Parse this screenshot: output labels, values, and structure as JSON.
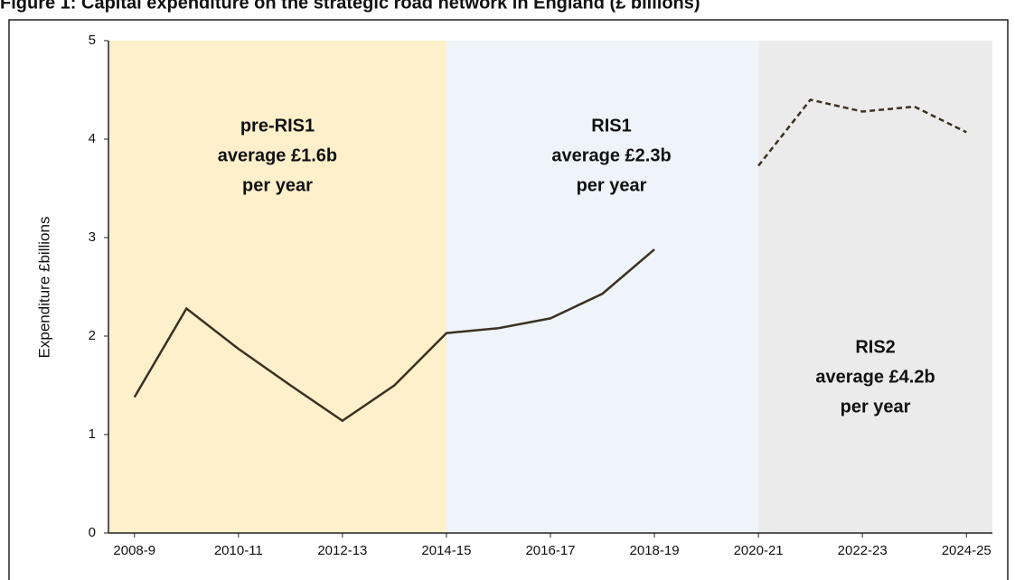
{
  "chart_data": {
    "type": "line",
    "title": "Figure 1: Capital expenditure on the strategic road network in England (£ billions)",
    "y_label": "Expenditure £billions",
    "categories": [
      "2008-9",
      null,
      "2010-11",
      null,
      "2012-13",
      null,
      "2014-15",
      null,
      "2016-17",
      null,
      "2018-19",
      null,
      "2020-21",
      null,
      "2022-23",
      null,
      "2024-25"
    ],
    "series": [
      {
        "color": "#3b3120",
        "style": "solid",
        "values": [
          1.38,
          2.28,
          1.87,
          1.5,
          1.14,
          1.5,
          2.03,
          2.08,
          2.18,
          2.43,
          2.88,
          null,
          null,
          null,
          null,
          null,
          null
        ]
      },
      {
        "color": "#3b3120",
        "style": "dashed",
        "values": [
          null,
          null,
          null,
          null,
          null,
          null,
          null,
          null,
          null,
          null,
          null,
          null,
          3.73,
          4.4,
          4.28,
          4.33,
          4.07
        ]
      }
    ],
    "ylim": [
      0,
      5
    ],
    "yticks": [
      0,
      1,
      2,
      3,
      4,
      5
    ],
    "grid": false,
    "region_boundaries": [
      "2014-15",
      "2020-21"
    ],
    "regions": [
      {
        "color": "#fff0cc",
        "label": [
          "pre-RIS1",
          "average £1.6b",
          "per year"
        ]
      },
      {
        "color": "#eef4fa",
        "label": [
          "RIS1",
          "average £2.3b",
          "per year"
        ]
      },
      {
        "color": "#ebebeb",
        "label": [
          "RIS2",
          "average £4.2b",
          "per year"
        ]
      }
    ]
  }
}
